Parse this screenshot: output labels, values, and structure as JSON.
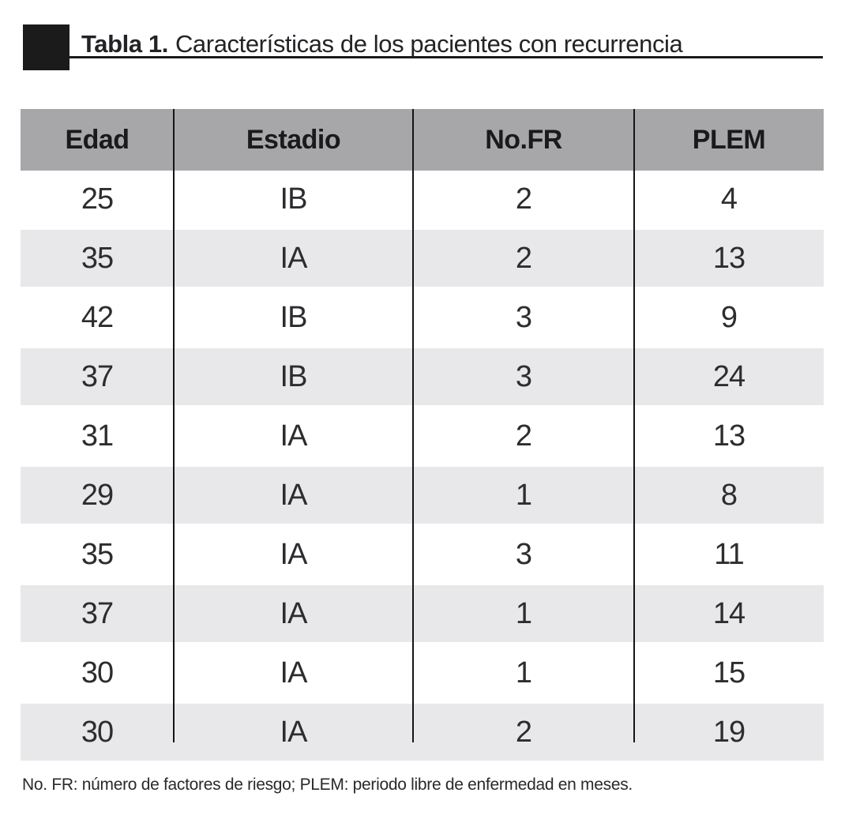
{
  "caption": {
    "label": "Tabla 1.",
    "title": "Características de los pacientes con recurrencia"
  },
  "table": {
    "columns": [
      "Edad",
      "Estadio",
      "No.FR",
      "PLEM"
    ],
    "rows": [
      [
        "25",
        "IB",
        "2",
        "4"
      ],
      [
        "35",
        "IA",
        "2",
        "13"
      ],
      [
        "42",
        "IB",
        "3",
        "9"
      ],
      [
        "37",
        "IB",
        "3",
        "24"
      ],
      [
        "31",
        "IA",
        "2",
        "13"
      ],
      [
        "29",
        "IA",
        "1",
        "8"
      ],
      [
        "35",
        "IA",
        "3",
        "11"
      ],
      [
        "37",
        "IA",
        "1",
        "14"
      ],
      [
        "30",
        "IA",
        "1",
        "15"
      ],
      [
        "30",
        "IA",
        "2",
        "19"
      ]
    ]
  },
  "footnote": "No. FR: número de factores de riesgo; PLEM: periodo libre de enfermedad en meses.",
  "colors": {
    "ink": "#1b1b1b",
    "header_bg": "#a7a7aa",
    "stripe_bg": "#e8e8ea"
  }
}
